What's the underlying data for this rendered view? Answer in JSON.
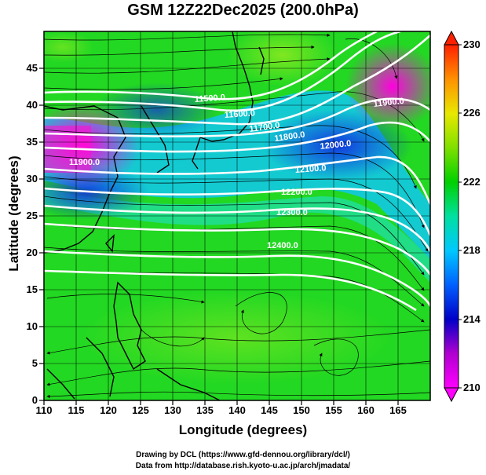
{
  "title": "GSM 12Z22Dec2025 (200.0hPa)",
  "axes": {
    "xlabel": "Longitude (degrees)",
    "ylabel": "Latitude  (degrees)",
    "xticks": [
      "110",
      "115",
      "120",
      "125",
      "130",
      "135",
      "140",
      "145",
      "150",
      "155",
      "160",
      "165"
    ],
    "yticks": [
      "0",
      "5",
      "10",
      "15",
      "20",
      "25",
      "30",
      "35",
      "40",
      "45"
    ],
    "xlim": [
      110,
      170
    ],
    "ylim": [
      0,
      50
    ]
  },
  "colorbar": {
    "ticks": [
      "230",
      "226",
      "222",
      "218",
      "214",
      "210"
    ],
    "range": [
      210,
      230
    ],
    "colors": [
      "#ff00ff",
      "#c000c0",
      "#0000c8",
      "#0060ff",
      "#00c8ff",
      "#00e0a0",
      "#00d000",
      "#80e000",
      "#e8e800",
      "#ff9000",
      "#ff2000"
    ]
  },
  "contours": {
    "labels": [
      "11500.0",
      "11600.0",
      "11700.0",
      "11800.0",
      "11900.0",
      "11900.0",
      "12000.0",
      "12100.0",
      "12200.0",
      "12300.0",
      "12400.0"
    ]
  },
  "credits": {
    "line1": "Drawing by DCL (https://www.gfd-dennou.org/library/dcl/)",
    "line2": "Data from http://database.rish.kyoto-u.ac.jp/arch/jmadata/"
  }
}
